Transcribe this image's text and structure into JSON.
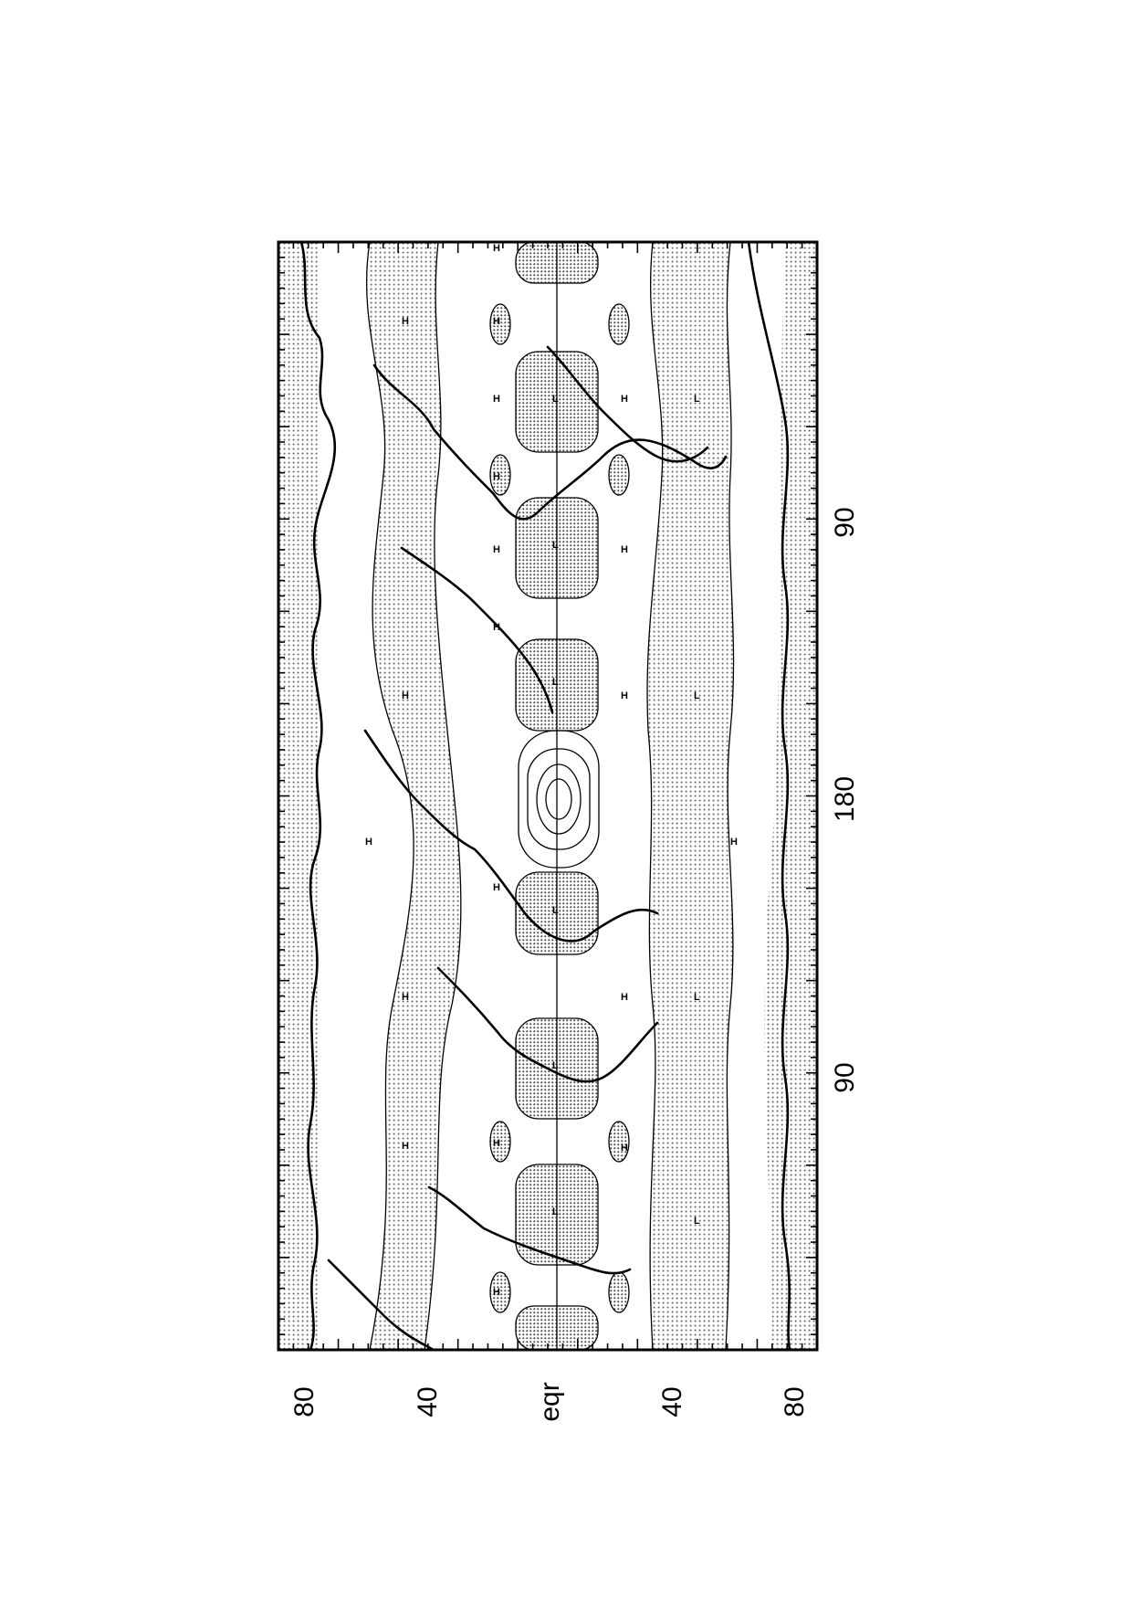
{
  "map": {
    "orientation": "rotated-90-ccw",
    "latitude_labels": [
      "80",
      "40",
      "eqr",
      "40",
      "80"
    ],
    "longitude_labels": [
      "90",
      "180",
      "90"
    ],
    "shading": "stippled",
    "high_marker": "H",
    "low_marker": "L"
  }
}
